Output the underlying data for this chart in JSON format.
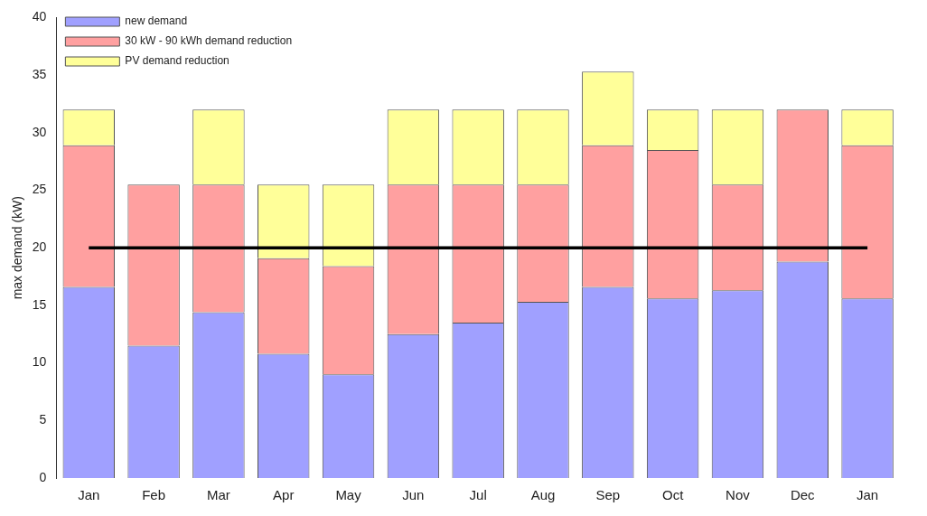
{
  "chart_data": {
    "type": "bar",
    "stacked": true,
    "ylabel": "max demand (kW)",
    "categories": [
      "Jan",
      "Feb",
      "Mar",
      "Apr",
      "May",
      "Jun",
      "Jul",
      "Aug",
      "Sep",
      "Oct",
      "Nov",
      "Dec",
      "Jan"
    ],
    "series": [
      {
        "name": "new demand",
        "color": "#a0a0ff",
        "values": [
          16.6,
          11.5,
          14.4,
          10.8,
          9.0,
          12.5,
          13.5,
          15.3,
          16.6,
          15.6,
          16.3,
          18.8,
          15.6
        ]
      },
      {
        "name": "30 kW - 90 kWh demand reduction",
        "color": "#ffa0a0",
        "values": [
          12.3,
          14.0,
          11.1,
          8.3,
          9.4,
          13.0,
          12.0,
          10.2,
          12.3,
          12.9,
          9.2,
          13.2,
          13.3
        ]
      },
      {
        "name": "PV demand reduction",
        "color": "#ffff99",
        "values": [
          3.1,
          0,
          6.5,
          6.4,
          7.1,
          6.5,
          6.5,
          6.5,
          6.4,
          3.5,
          6.5,
          0,
          3.1
        ]
      }
    ],
    "ylim": [
      0,
      40
    ],
    "yticks": [
      0,
      5,
      10,
      15,
      20,
      25,
      30,
      35,
      40
    ],
    "grid": false,
    "legend": "top left",
    "ref_lines": [
      {
        "axis": "y",
        "value": 20,
        "color": "#000000"
      }
    ]
  }
}
